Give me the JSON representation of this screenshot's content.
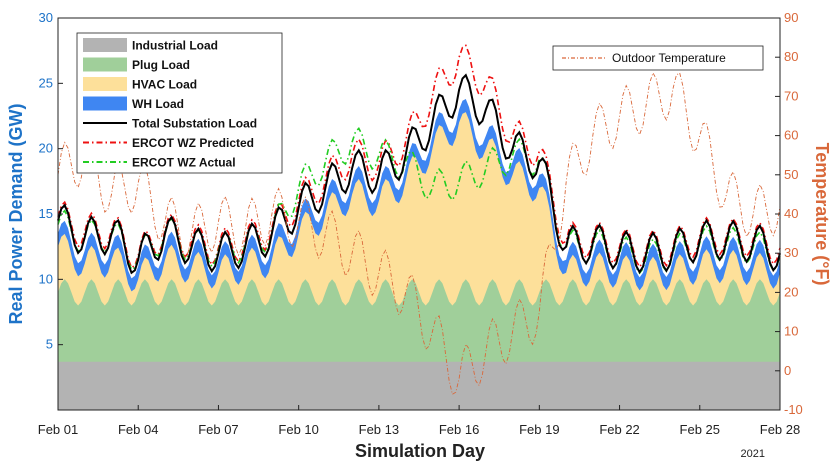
{
  "chart_data": {
    "type": "area",
    "xlabel": "Simulation Day",
    "ylabel": "Real Power Demand (GW)",
    "y2label": "Temperature (°F)",
    "x_year": "2021",
    "x_ticks": [
      "Feb 01",
      "Feb 04",
      "Feb 07",
      "Feb 10",
      "Feb 13",
      "Feb 16",
      "Feb 19",
      "Feb 22",
      "Feb 25",
      "Feb 28"
    ],
    "x_tick_days": [
      0,
      3,
      6,
      9,
      12,
      15,
      18,
      21,
      24,
      27
    ],
    "xlim": [
      0,
      27
    ],
    "ylim": [
      0,
      30
    ],
    "y_ticks": [
      5,
      10,
      15,
      20,
      25,
      30
    ],
    "y2lim": [
      -10,
      90
    ],
    "y2_ticks": [
      -10,
      0,
      10,
      20,
      30,
      40,
      50,
      60,
      70,
      80,
      90
    ],
    "day_samples": [
      0,
      1,
      2,
      3,
      4,
      5,
      6,
      7,
      8,
      9,
      10,
      11,
      12,
      13,
      14,
      15,
      16,
      17,
      18,
      19,
      20,
      21,
      22,
      23,
      24,
      25,
      26,
      27
    ],
    "legend": [
      {
        "label": "Industrial Load",
        "color": "#b3b3b3",
        "kind": "area"
      },
      {
        "label": "Plug Load",
        "color": "#a0cf9a",
        "kind": "area"
      },
      {
        "label": "HVAC Load",
        "color": "#fde09a",
        "kind": "area"
      },
      {
        "label": "WH Load",
        "color": "#3f86f2",
        "kind": "area"
      },
      {
        "label": "Total Substation Load",
        "color": "#000000",
        "kind": "line"
      },
      {
        "label": "ERCOT WZ Predicted",
        "color": "#ee1111",
        "kind": "dashdot"
      },
      {
        "label": "ERCOT WZ Actual",
        "color": "#22cc22",
        "kind": "dashdot"
      }
    ],
    "legend2": {
      "label": "Outdoor Temperature",
      "color": "#d9683a"
    },
    "series": [
      {
        "name": "Industrial Load",
        "values": [
          3.7,
          3.7,
          3.7,
          3.7,
          3.7,
          3.7,
          3.7,
          3.7,
          3.7,
          3.7,
          3.7,
          3.7,
          3.7,
          3.7,
          3.7,
          3.7,
          3.7,
          3.7,
          3.7,
          3.7,
          3.7,
          3.7,
          3.7,
          3.7,
          3.7,
          3.7,
          3.7,
          3.7
        ]
      },
      {
        "name": "Plug Load",
        "values": [
          9,
          9,
          9,
          9,
          9,
          9,
          9,
          9,
          9,
          9,
          9,
          9,
          9,
          9,
          9,
          9,
          9,
          9,
          9,
          9,
          9,
          9,
          9,
          9,
          9,
          9,
          9,
          9
        ]
      },
      {
        "name": "HVAC Load",
        "values": [
          12.5,
          11.2,
          11.5,
          10,
          11.5,
          10.9,
          10.5,
          11,
          11.5,
          13.5,
          15,
          16.5,
          16,
          17.5,
          20,
          22,
          20,
          18,
          17,
          10.5,
          10.8,
          10.6,
          10.4,
          10.5,
          11,
          11,
          10.8,
          10.5
        ]
      },
      {
        "name": "WH Load",
        "values": [
          13.5,
          12.2,
          12.5,
          11,
          12.5,
          11.9,
          11.5,
          12,
          12.5,
          14.5,
          16,
          17.5,
          17,
          18.5,
          21,
          23,
          21,
          19,
          18,
          11.5,
          11.8,
          11.6,
          11.4,
          11.5,
          12,
          12,
          11.8,
          11.5
        ]
      },
      {
        "name": "Total Substation Load",
        "values": [
          14.5,
          13.2,
          13.5,
          11.5,
          13.5,
          12.5,
          12,
          12.5,
          13.5,
          15.5,
          17,
          18.5,
          18,
          19.5,
          22,
          24.5,
          23,
          20,
          19,
          12.5,
          12.8,
          12.2,
          12,
          12.2,
          13,
          13,
          12.8,
          12
        ]
      },
      {
        "name": "ERCOT WZ Predicted",
        "values": [
          14.8,
          13.6,
          13.8,
          11.8,
          13.8,
          12.9,
          12.4,
          12.9,
          13.9,
          16,
          17.6,
          19.5,
          18.8,
          20.5,
          24,
          27,
          25,
          21,
          19.8,
          12.9,
          13.1,
          12.5,
          12.3,
          12.5,
          13.3,
          13.3,
          13.1,
          12.4
        ]
      },
      {
        "name": "ERCOT WZ Actual",
        "values": [
          14.2,
          13.2,
          13.4,
          11.6,
          13.6,
          12.6,
          12.2,
          12.7,
          13.6,
          17,
          19,
          20.5,
          19.5,
          19,
          17,
          17.5,
          18.5,
          19.5,
          19.2,
          12.4,
          12.6,
          12,
          11.7,
          12,
          12.8,
          12.7,
          12.5,
          11.8
        ]
      },
      {
        "name": "Outdoor Temperature",
        "axis": "y2",
        "values": [
          50,
          55,
          45,
          48,
          38,
          35,
          38,
          36,
          40,
          38,
          35,
          30,
          25,
          20,
          10,
          -2,
          5,
          10,
          15,
          48,
          60,
          65,
          68,
          72,
          60,
          45,
          40,
          42
        ]
      }
    ],
    "annotations": []
  }
}
